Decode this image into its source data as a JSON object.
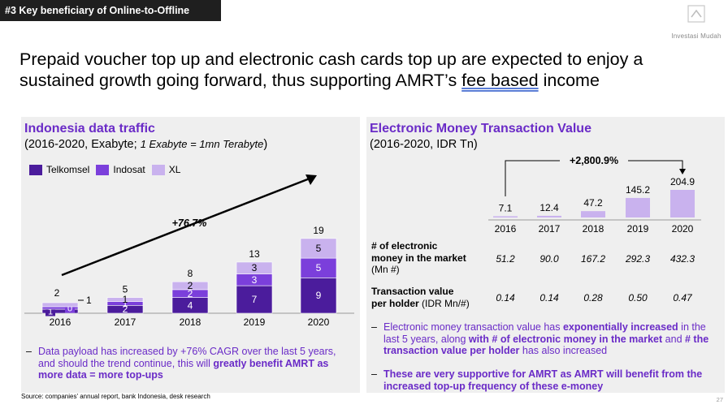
{
  "tag": "#3 Key beneficiary of Online-to-Offline",
  "logo_text": "Investasi Mudah",
  "headline_parts": [
    "Prepaid voucher top up and electronic cash cards top up are expected to enjoy a sustained growth going forward, thus supporting AMRT’s ",
    "fee based",
    " income"
  ],
  "left_panel": {
    "title": "Indonesia data traffic",
    "subtitle_main": "(2016-2020, Exabyte; ",
    "subtitle_note": "1 Exabyte = 1mn Terabyte",
    "subtitle_end": ")",
    "legend": [
      "Telkomsel",
      "Indosat",
      "XL"
    ],
    "growth_label": "+76.7%",
    "bullet_parts": [
      "Data payload has increased by +76% CAGR over the last 5 years, and should the trend continue, this will ",
      "greatly benefit AMRT as more data = more top-ups"
    ]
  },
  "right_panel": {
    "title": "Electronic Money Transaction Value",
    "subtitle": "(2016-2020, IDR Tn)",
    "growth_label": "+2,800.9%",
    "row1_label_lines": [
      "# of electronic",
      "money in the market",
      "(Mn #)"
    ],
    "row1_values": [
      "51.2",
      "90.0",
      "167.2",
      "292.3",
      "432.3"
    ],
    "row2_label_lines": [
      "Transaction value",
      "per holder",
      " (IDR Mn/#)"
    ],
    "row2_values": [
      "0.14",
      "0.14",
      "0.28",
      "0.50",
      "0.47"
    ],
    "bullet1_parts": [
      "Electronic money transaction value has ",
      "exponentially increased",
      " in the last 5 years, along ",
      "with # of electronic money in the market",
      " and ",
      "# the transaction value per holder",
      " has also increased"
    ],
    "bullet2": "These are very supportive for AMRT as AMRT will benefit from the increased top-up frequency of these e-money"
  },
  "source": "Source: companies' annual report, bank Indonesia, desk research",
  "page_number": "27",
  "colors": {
    "telkomsel": "#4b1c9c",
    "indosat": "#7b3fdb",
    "xl": "#c9b2ee",
    "emt_bar": "#c9b2ee",
    "accent": "#6a2bc7"
  },
  "chart_data": [
    {
      "type": "bar",
      "stacked": true,
      "title": "Indonesia data traffic",
      "categories": [
        "2016",
        "2017",
        "2018",
        "2019",
        "2020"
      ],
      "series": [
        {
          "name": "Telkomsel",
          "values": [
            1,
            2,
            4,
            7,
            9
          ]
        },
        {
          "name": "Indosat",
          "values": [
            0,
            1,
            2,
            3,
            5
          ]
        },
        {
          "name": "XL",
          "values": [
            1,
            1,
            2,
            3,
            5
          ]
        }
      ],
      "totals": [
        "2",
        "5",
        "8",
        "13",
        "19"
      ],
      "outside_labels": [
        "1",
        "",
        "",
        "",
        ""
      ],
      "legend_position": "top-left"
    },
    {
      "type": "bar",
      "title": "Electronic Money Transaction Value",
      "categories": [
        "2016",
        "2017",
        "2018",
        "2019",
        "2020"
      ],
      "values": [
        7.1,
        12.4,
        47.2,
        145.2,
        204.9
      ],
      "value_labels": [
        "7.1",
        "12.4",
        "47.2",
        "145.2",
        "204.9"
      ]
    }
  ]
}
